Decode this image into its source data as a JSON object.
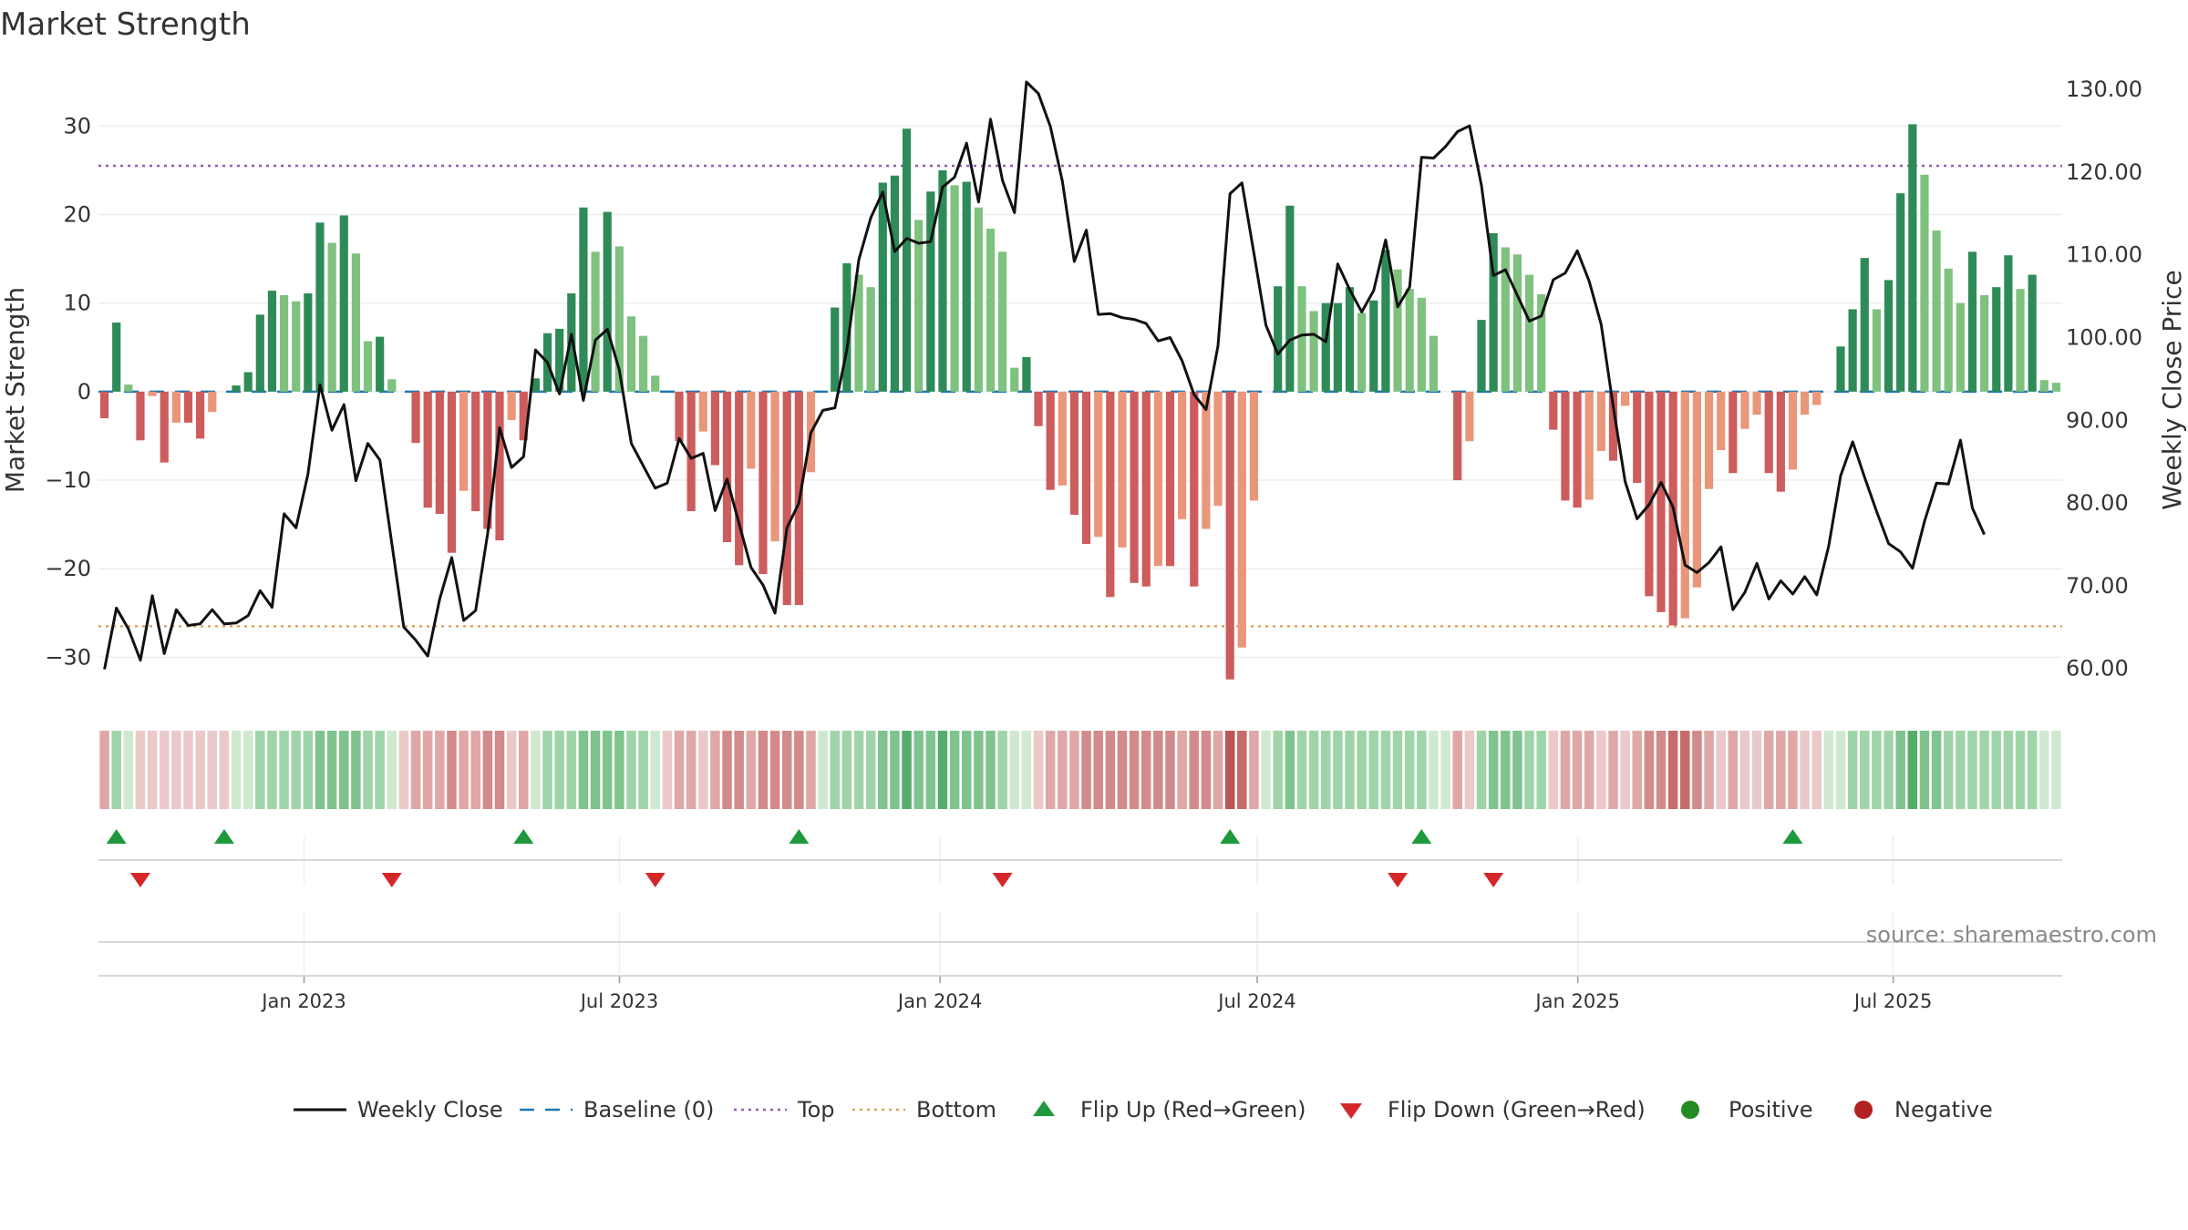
{
  "chart_data": {
    "type": "bar",
    "title": "Market Strength",
    "ylabel": "Market Strength",
    "y2label": "Weekly Close Price",
    "ylim": [
      -35,
      36
    ],
    "y2lim": [
      56.0,
      132.0
    ],
    "yticks": [
      30,
      20,
      10,
      0,
      -10,
      -20,
      -30
    ],
    "ytick_labels": [
      "30",
      "20",
      "10",
      "0",
      "−10",
      "−20",
      "−30"
    ],
    "y2ticks": [
      130,
      120,
      110,
      100,
      90,
      80,
      70,
      60
    ],
    "y2tick_labels": [
      "130.00",
      "120.00",
      "110.00",
      "100.00",
      "90.00",
      "80.00",
      "70.00",
      "60.00"
    ],
    "top_line": 25.5,
    "bottom_line": -26.5,
    "baseline": 0,
    "x_start": "2022-09-05",
    "x_end": "2025-10-06",
    "xticks": [
      {
        "date": "2023-01-01",
        "label": "Jan 2023"
      },
      {
        "date": "2023-07-01",
        "label": "Jul 2023"
      },
      {
        "date": "2024-01-01",
        "label": "Jan 2024"
      },
      {
        "date": "2024-07-01",
        "label": "Jul 2024"
      },
      {
        "date": "2025-01-01",
        "label": "Jan 2025"
      },
      {
        "date": "2025-07-01",
        "label": "Jul 2025"
      }
    ],
    "strength_values": [
      -3,
      7.8,
      0.8,
      -5.5,
      -0.5,
      -8,
      -3.5,
      -3.5,
      -5.3,
      -2.3,
      -0.2,
      0.7,
      2.2,
      8.7,
      11.4,
      10.9,
      10.2,
      11.1,
      19.1,
      16.8,
      19.9,
      15.6,
      5.7,
      6.2,
      1.4,
      -0.2,
      -5.8,
      -13.1,
      -13.8,
      -18.2,
      -11.2,
      -13.5,
      -15.5,
      -16.8,
      -3.2,
      -5.5,
      1.5,
      6.6,
      7.1,
      11.1,
      20.8,
      15.8,
      20.3,
      16.4,
      8.5,
      6.3,
      1.8,
      -0.1,
      -5.6,
      -13.5,
      -4.5,
      -8.3,
      -17,
      -19.6,
      -8.7,
      -20.6,
      -16.9,
      -24.1,
      -24.1,
      -9.1,
      0.2,
      9.5,
      14.5,
      13.2,
      11.8,
      23.6,
      24.4,
      29.7,
      19.4,
      22.6,
      25,
      23.3,
      23.7,
      20.8,
      18.4,
      15.8,
      2.7,
      3.9,
      -3.9,
      -11.1,
      -10.6,
      -13.9,
      -17.2,
      -16.4,
      -23.2,
      -17.6,
      -21.6,
      -22,
      -19.7,
      -19.7,
      -14.4,
      -22,
      -15.5,
      -12.9,
      -32.5,
      -28.9,
      -12.3,
      0.2,
      11.9,
      21,
      11.9,
      9.1,
      10,
      10,
      11.8,
      8.9,
      10.3,
      16,
      13.8,
      11.6,
      10.6,
      6.3,
      0.1,
      -10,
      -5.6,
      8.1,
      17.9,
      16.3,
      15.5,
      13.2,
      11,
      -4.3,
      -12.3,
      -13.1,
      -12.2,
      -6.7,
      -7.8,
      -1.6,
      -10.3,
      -23.1,
      -24.9,
      -26.4,
      -25.6,
      -22.1,
      -11,
      -6.6,
      -9.2,
      -4.2,
      -2.6,
      -9.2,
      -11.3,
      -8.8,
      -2.6,
      -1.5,
      0.1,
      5.1,
      9.3,
      15.1,
      9.3,
      12.6,
      22.4,
      30.2,
      24.5,
      18.2,
      13.9,
      10,
      15.8,
      10.9,
      11.8,
      15.4,
      11.6,
      13.2,
      1.3,
      1
    ],
    "weekly_close": [
      59.9,
      67.3,
      64.8,
      61.0,
      68.8,
      61.8,
      67.1,
      65.2,
      65.4,
      67.1,
      65.4,
      65.5,
      66.4,
      69.4,
      67.4,
      78.7,
      77.0,
      83.5,
      94.3,
      88.8,
      91.9,
      82.7,
      87.2,
      85.2,
      75.1,
      65.0,
      63.4,
      61.5,
      68.4,
      73.4,
      65.8,
      67.0,
      76.3,
      89.1,
      84.3,
      85.6,
      98.5,
      97.0,
      93.2,
      100.4,
      92.4,
      99.7,
      101.0,
      96.1,
      87.2,
      84.5,
      81.8,
      82.4,
      87.8,
      85.4,
      86.0,
      79.1,
      82.9,
      77.5,
      72.2,
      70.1,
      66.7,
      77.0,
      80.0,
      88.5,
      91.2,
      91.5,
      98.5,
      109.4,
      114.5,
      117.6,
      110.4,
      112.0,
      111.4,
      111.6,
      118.2,
      119.4,
      123.5,
      116.4,
      126.4,
      119.0,
      115.1,
      130.9,
      129.5,
      125.5,
      118.9,
      109.2,
      113.0,
      102.8,
      102.9,
      102.4,
      102.2,
      101.7,
      99.6,
      100.0,
      97.2,
      93.1,
      91.3,
      99.0,
      117.4,
      118.7,
      110.2,
      101.5,
      98.0,
      99.7,
      100.3,
      100.4,
      99.5,
      108.9,
      105.8,
      103.1,
      105.7,
      111.8,
      103.7,
      106.1,
      121.8,
      121.7,
      123.1,
      124.9,
      125.6,
      118.4,
      107.5,
      108.2,
      105.1,
      102.0,
      102.6,
      107.0,
      107.8,
      110.5,
      106.8,
      101.6,
      91.7,
      82.6,
      78.1,
      79.8,
      82.5,
      79.5,
      72.5,
      71.6,
      72.8,
      74.7,
      67.1,
      69.2,
      72.7,
      68.4,
      70.6,
      69.0,
      71.1,
      68.9,
      74.8,
      83.3,
      87.4,
      83.1,
      79.0,
      75.1,
      74.1,
      72.1,
      77.8,
      82.4,
      82.3,
      87.6,
      79.4,
      76.2
    ],
    "regime_strip": {
      "values": [
        -2,
        2,
        1,
        -1,
        -1,
        -1,
        -1,
        -1,
        -1,
        -1,
        -1,
        1,
        1,
        2,
        2,
        2,
        2,
        2,
        3,
        3,
        3,
        3,
        2,
        2,
        1,
        -1,
        -2,
        -2,
        -2,
        -3,
        -2,
        -2,
        -3,
        -3,
        -1,
        -2,
        1,
        2,
        2,
        2,
        3,
        3,
        3,
        3,
        2,
        2,
        1,
        -1,
        -2,
        -2,
        -1,
        -2,
        -3,
        -3,
        -2,
        -3,
        -3,
        -3,
        -3,
        -2,
        1,
        2,
        2,
        2,
        2,
        3,
        3,
        4,
        3,
        3,
        4,
        3,
        3,
        3,
        3,
        2,
        1,
        1,
        -1,
        -2,
        -2,
        -2,
        -3,
        -3,
        -3,
        -3,
        -3,
        -3,
        -3,
        -3,
        -2,
        -3,
        -3,
        -2,
        -5,
        -4,
        -2,
        1,
        2,
        3,
        2,
        2,
        2,
        2,
        2,
        2,
        2,
        2,
        2,
        2,
        2,
        1,
        1,
        -2,
        -1,
        2,
        3,
        3,
        3,
        2,
        2,
        -1,
        -2,
        -2,
        -2,
        -1,
        -2,
        -1,
        -2,
        -3,
        -3,
        -4,
        -4,
        -3,
        -2,
        -1,
        -2,
        -1,
        -1,
        -2,
        -2,
        -2,
        -1,
        -1,
        1,
        1,
        2,
        2,
        2,
        2,
        3,
        4,
        3,
        3,
        2,
        2,
        2,
        2,
        2,
        2,
        2,
        2,
        1,
        1
      ]
    },
    "flip_up_indices": [
      1,
      10,
      35,
      58,
      94,
      110,
      141
    ],
    "flip_down_indices": [
      3,
      24,
      46,
      75,
      108,
      116
    ],
    "source": "source: sharemaestro.com",
    "legend": [
      {
        "key": "close",
        "label": "Weekly Close"
      },
      {
        "key": "baseline",
        "label": "Baseline (0)"
      },
      {
        "key": "top",
        "label": "Top"
      },
      {
        "key": "bottom",
        "label": "Bottom"
      },
      {
        "key": "flipup",
        "label": "Flip Up (Red→Green)"
      },
      {
        "key": "flipdown",
        "label": "Flip Down (Green→Red)"
      },
      {
        "key": "positive",
        "label": "Positive"
      },
      {
        "key": "negative",
        "label": "Negative"
      }
    ],
    "colors": {
      "pos_strong": "#2e8b57",
      "pos_light": "#7fc17f",
      "neg_strong": "#cd5c5c",
      "neg_light": "#e9967a",
      "close_line": "#111111",
      "baseline": "#1f77b4",
      "top": "#9b59b6",
      "bottom": "#e0a060",
      "flip_up": "#1e9a3c",
      "flip_down": "#d62728",
      "positive_dot": "#228b22",
      "negative_dot": "#b22222",
      "grid": "#eeeeee"
    }
  }
}
